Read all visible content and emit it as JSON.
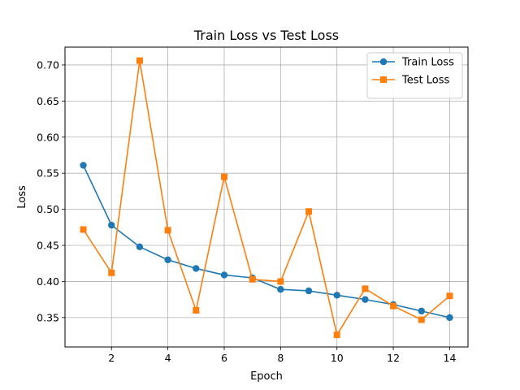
{
  "chart_data": {
    "type": "line",
    "title": "Train Loss vs Test Loss",
    "xlabel": "Epoch",
    "ylabel": "Loss",
    "x": [
      1,
      2,
      3,
      4,
      5,
      6,
      7,
      8,
      9,
      10,
      11,
      12,
      13,
      14
    ],
    "xlim": [
      0.35,
      14.65
    ],
    "ylim": [
      0.3093,
      0.7247
    ],
    "xticks": [
      2,
      4,
      6,
      8,
      10,
      12,
      14
    ],
    "yticks": [
      0.35,
      0.4,
      0.45,
      0.5,
      0.55,
      0.6,
      0.65,
      0.7
    ],
    "ytick_labels": [
      "0.35",
      "0.40",
      "0.45",
      "0.50",
      "0.55",
      "0.60",
      "0.65",
      "0.70"
    ],
    "xtick_labels": [
      "2",
      "4",
      "6",
      "8",
      "10",
      "12",
      "14"
    ],
    "grid": true,
    "legend_position": "top-right",
    "series": [
      {
        "name": "Train Loss",
        "color": "#1f77b4",
        "marker": "circle",
        "values": [
          0.561,
          0.478,
          0.448,
          0.43,
          0.418,
          0.409,
          0.405,
          0.389,
          0.387,
          0.381,
          0.375,
          0.368,
          0.359,
          0.35
        ]
      },
      {
        "name": "Test Loss",
        "color": "#ff7f0e",
        "marker": "square",
        "values": [
          0.472,
          0.412,
          0.706,
          0.471,
          0.36,
          0.545,
          0.403,
          0.4,
          0.497,
          0.326,
          0.39,
          0.366,
          0.347,
          0.38
        ]
      }
    ]
  }
}
